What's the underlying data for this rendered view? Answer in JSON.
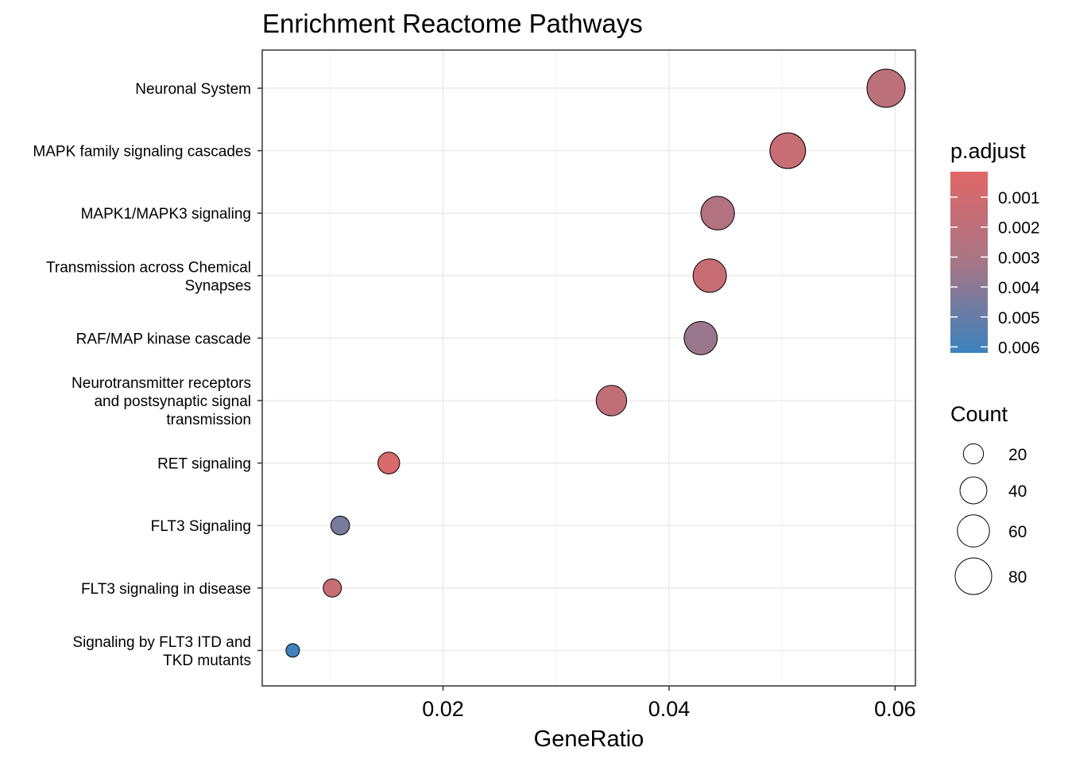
{
  "chart_data": {
    "type": "scatter",
    "title": "Enrichment Reactome Pathways",
    "xlabel": "GeneRatio",
    "ylabel": "",
    "xlim": [
      0.004,
      0.0618
    ],
    "x_ticks": [
      0.02,
      0.04,
      0.06
    ],
    "x_tick_labels": [
      "0.02",
      "0.04",
      "0.06"
    ],
    "grid": true,
    "categories": [
      [
        "Neuronal System"
      ],
      [
        "MAPK family signaling cascades"
      ],
      [
        "MAPK1/MAPK3 signaling"
      ],
      [
        "Transmission across Chemical",
        "Synapses"
      ],
      [
        "RAF/MAP kinase cascade"
      ],
      [
        "Neurotransmitter receptors",
        "and postsynaptic signal",
        "transmission"
      ],
      [
        "RET signaling"
      ],
      [
        "FLT3 Signaling"
      ],
      [
        "FLT3 signaling in disease"
      ],
      [
        "Signaling by FLT3 ITD and",
        "TKD mutants"
      ]
    ],
    "points": [
      {
        "gene_ratio": 0.0592,
        "count": 84,
        "p_adjust": 0.0021
      },
      {
        "gene_ratio": 0.0505,
        "count": 72,
        "p_adjust": 0.0015
      },
      {
        "gene_ratio": 0.0443,
        "count": 63,
        "p_adjust": 0.0026
      },
      {
        "gene_ratio": 0.0436,
        "count": 62,
        "p_adjust": 0.0014
      },
      {
        "gene_ratio": 0.0428,
        "count": 61,
        "p_adjust": 0.0036
      },
      {
        "gene_ratio": 0.0349,
        "count": 50,
        "p_adjust": 0.0018
      },
      {
        "gene_ratio": 0.0152,
        "count": 22,
        "p_adjust": 0.0005
      },
      {
        "gene_ratio": 0.0109,
        "count": 15,
        "p_adjust": 0.0045
      },
      {
        "gene_ratio": 0.0102,
        "count": 14,
        "p_adjust": 0.0016
      },
      {
        "gene_ratio": 0.0067,
        "count": 6,
        "p_adjust": 0.0061
      }
    ],
    "color_legend": {
      "title": "p.adjust",
      "range": [
        0.00015,
        0.0062
      ],
      "ticks": [
        0.001,
        0.002,
        0.003,
        0.004,
        0.005,
        0.006
      ],
      "tick_labels": [
        "0.001",
        "0.002",
        "0.003",
        "0.004",
        "0.005",
        "0.006"
      ],
      "low_color": "#E06767",
      "high_color": "#3C82BE"
    },
    "size_legend": {
      "title": "Count",
      "values": [
        20,
        40,
        60,
        80
      ],
      "labels": [
        "20",
        "40",
        "60",
        "80"
      ]
    },
    "legend_position": "right"
  }
}
